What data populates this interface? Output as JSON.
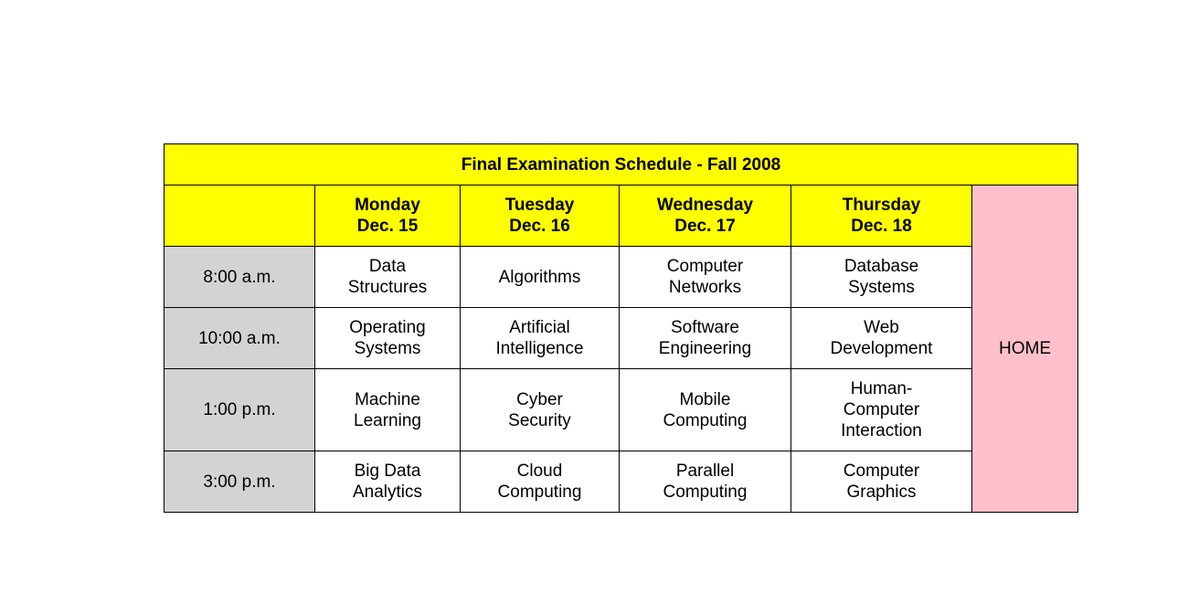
{
  "title": "Final Examination Schedule - Fall 2008",
  "home_label": "HOME",
  "colors": {
    "header_bg": "#ffff00",
    "time_bg": "#d3d3d3",
    "home_bg": "#ffc0cb",
    "cell_bg": "#ffffff"
  },
  "days": [
    {
      "name": "Monday",
      "date": "Dec. 15"
    },
    {
      "name": "Tuesday",
      "date": "Dec. 16"
    },
    {
      "name": "Wednesday",
      "date": "Dec. 17"
    },
    {
      "name": "Thursday",
      "date": "Dec. 18"
    }
  ],
  "rows": [
    {
      "time": "8:00 a.m.",
      "courses": [
        [
          "Data",
          "Structures"
        ],
        [
          "Algorithms"
        ],
        [
          "Computer",
          "Networks"
        ],
        [
          "Database",
          "Systems"
        ]
      ]
    },
    {
      "time": "10:00 a.m.",
      "courses": [
        [
          "Operating",
          "Systems"
        ],
        [
          "Artificial",
          "Intelligence"
        ],
        [
          "Software",
          "Engineering"
        ],
        [
          "Web",
          "Development"
        ]
      ]
    },
    {
      "time": "1:00 p.m.",
      "courses": [
        [
          "Machine",
          "Learning"
        ],
        [
          "Cyber",
          "Security"
        ],
        [
          "Mobile",
          "Computing"
        ],
        [
          "Human-",
          "Computer",
          "Interaction"
        ]
      ]
    },
    {
      "time": "3:00 p.m.",
      "courses": [
        [
          "Big Data",
          "Analytics"
        ],
        [
          "Cloud",
          "Computing"
        ],
        [
          "Parallel",
          "Computing"
        ],
        [
          "Computer",
          "Graphics"
        ]
      ]
    }
  ]
}
